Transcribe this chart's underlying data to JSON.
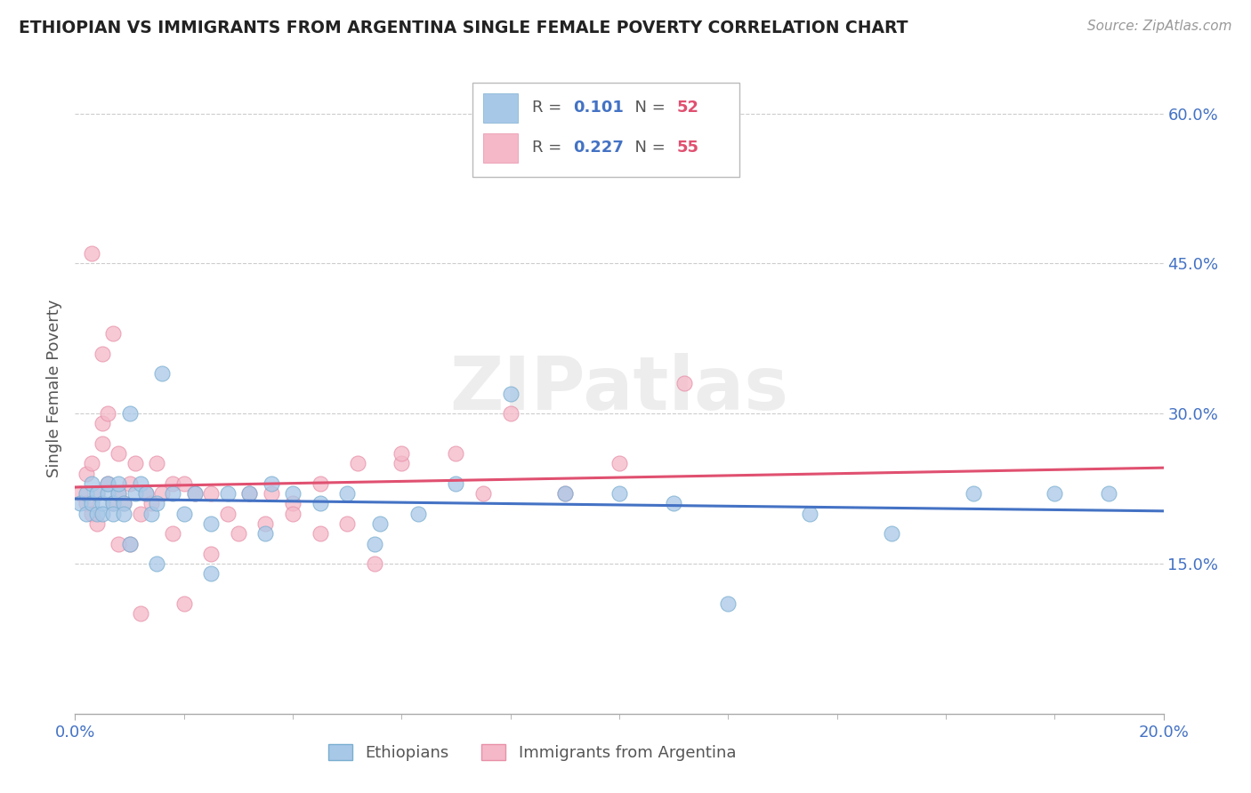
{
  "title": "ETHIOPIAN VS IMMIGRANTS FROM ARGENTINA SINGLE FEMALE POVERTY CORRELATION CHART",
  "source": "Source: ZipAtlas.com",
  "ylabel": "Single Female Poverty",
  "right_yticks": [
    0.15,
    0.3,
    0.45,
    0.6
  ],
  "right_ytick_labels": [
    "15.0%",
    "30.0%",
    "45.0%",
    "60.0%"
  ],
  "watermark": "ZIPatlas",
  "ethiopians_color": "#a8c8e8",
  "ethiopia_edge_color": "#7aaed0",
  "argentina_color": "#f4b8c8",
  "argentina_edge_color": "#e890a8",
  "trend_ethiopians_color": "#4472c4",
  "trend_argentina_color": "#e05070",
  "legend_r1": "0.101",
  "legend_n1": "52",
  "legend_r2": "0.227",
  "legend_n2": "55",
  "label_eth": "Ethiopians",
  "label_arg": "Immigrants from Argentina",
  "r_color": "#4472c4",
  "n_color": "#e05070",
  "text_color": "#555555",
  "ethiopians_x": [
    0.001,
    0.002,
    0.002,
    0.003,
    0.003,
    0.004,
    0.004,
    0.005,
    0.005,
    0.006,
    0.006,
    0.007,
    0.007,
    0.008,
    0.008,
    0.009,
    0.009,
    0.01,
    0.011,
    0.012,
    0.013,
    0.014,
    0.015,
    0.016,
    0.018,
    0.02,
    0.022,
    0.025,
    0.028,
    0.032,
    0.036,
    0.04,
    0.045,
    0.05,
    0.056,
    0.063,
    0.07,
    0.08,
    0.09,
    0.1,
    0.11,
    0.12,
    0.135,
    0.15,
    0.165,
    0.18,
    0.19,
    0.01,
    0.015,
    0.025,
    0.035,
    0.055
  ],
  "ethiopians_y": [
    0.21,
    0.22,
    0.2,
    0.23,
    0.21,
    0.22,
    0.2,
    0.21,
    0.2,
    0.22,
    0.23,
    0.21,
    0.2,
    0.22,
    0.23,
    0.21,
    0.2,
    0.3,
    0.22,
    0.23,
    0.22,
    0.2,
    0.21,
    0.34,
    0.22,
    0.2,
    0.22,
    0.19,
    0.22,
    0.22,
    0.23,
    0.22,
    0.21,
    0.22,
    0.19,
    0.2,
    0.23,
    0.32,
    0.22,
    0.22,
    0.21,
    0.11,
    0.2,
    0.18,
    0.22,
    0.22,
    0.22,
    0.17,
    0.15,
    0.14,
    0.18,
    0.17
  ],
  "argentina_x": [
    0.001,
    0.002,
    0.002,
    0.003,
    0.003,
    0.004,
    0.004,
    0.005,
    0.005,
    0.006,
    0.006,
    0.007,
    0.008,
    0.008,
    0.009,
    0.01,
    0.011,
    0.012,
    0.013,
    0.014,
    0.015,
    0.016,
    0.018,
    0.02,
    0.022,
    0.025,
    0.028,
    0.032,
    0.036,
    0.04,
    0.045,
    0.052,
    0.06,
    0.07,
    0.08,
    0.09,
    0.1,
    0.112,
    0.045,
    0.03,
    0.025,
    0.018,
    0.01,
    0.008,
    0.035,
    0.04,
    0.05,
    0.06,
    0.055,
    0.075,
    0.005,
    0.003,
    0.007,
    0.012,
    0.02
  ],
  "argentina_y": [
    0.22,
    0.24,
    0.21,
    0.25,
    0.2,
    0.22,
    0.19,
    0.29,
    0.27,
    0.23,
    0.3,
    0.21,
    0.26,
    0.22,
    0.21,
    0.23,
    0.25,
    0.2,
    0.22,
    0.21,
    0.25,
    0.22,
    0.23,
    0.23,
    0.22,
    0.22,
    0.2,
    0.22,
    0.22,
    0.21,
    0.23,
    0.25,
    0.25,
    0.26,
    0.3,
    0.22,
    0.25,
    0.33,
    0.18,
    0.18,
    0.16,
    0.18,
    0.17,
    0.17,
    0.19,
    0.2,
    0.19,
    0.26,
    0.15,
    0.22,
    0.36,
    0.46,
    0.38,
    0.1,
    0.11
  ],
  "xlim": [
    0.0,
    0.2
  ],
  "ylim": [
    0.0,
    0.65
  ],
  "xtick_minor_count": 10
}
